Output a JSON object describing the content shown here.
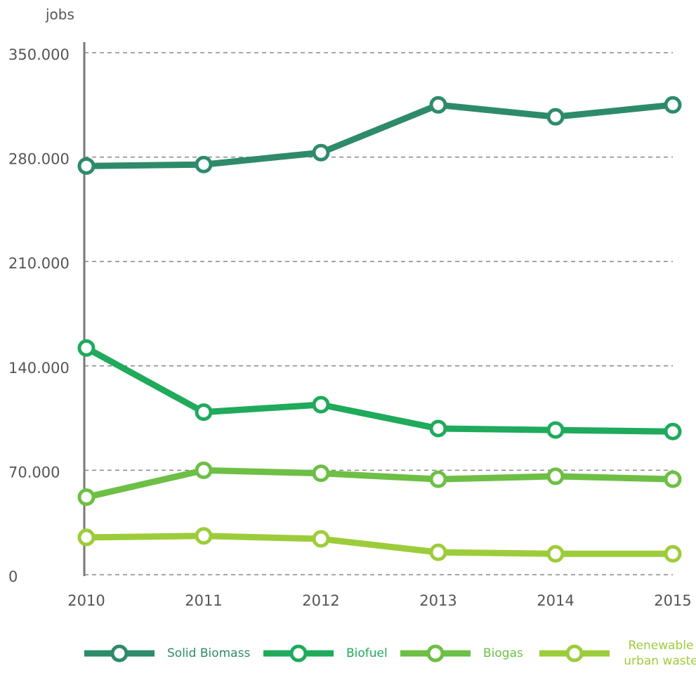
{
  "chart_data": {
    "type": "line",
    "y_label": "jobs",
    "categories": [
      "2010",
      "2011",
      "2012",
      "2013",
      "2014",
      "2015"
    ],
    "series": [
      {
        "name": "Solid Biomass",
        "color": "#2e8b6a",
        "values": [
          274000,
          275000,
          283000,
          315000,
          307000,
          315000
        ]
      },
      {
        "name": "Biofuel",
        "color": "#1faa5c",
        "values": [
          152000,
          109000,
          114000,
          98000,
          97000,
          96000
        ]
      },
      {
        "name": "Biogas",
        "color": "#6dbf45",
        "values": [
          52000,
          70000,
          68000,
          64000,
          66000,
          64000
        ]
      },
      {
        "name": "Renewable urban waste",
        "color": "#9dcc3b",
        "values": [
          25000,
          26000,
          24000,
          15000,
          14000,
          14000
        ]
      }
    ],
    "ylim": [
      0,
      350000
    ],
    "yticks": [
      0,
      {
        "value": 70000,
        "label": "70.000"
      },
      {
        "value": 140000,
        "label": "140.000"
      },
      {
        "value": 210000,
        "label": "210.000"
      },
      {
        "value": 280000,
        "label": "280.000"
      },
      {
        "value": 350000,
        "label": "350.000"
      }
    ],
    "grid": true,
    "legend": "bottom"
  }
}
